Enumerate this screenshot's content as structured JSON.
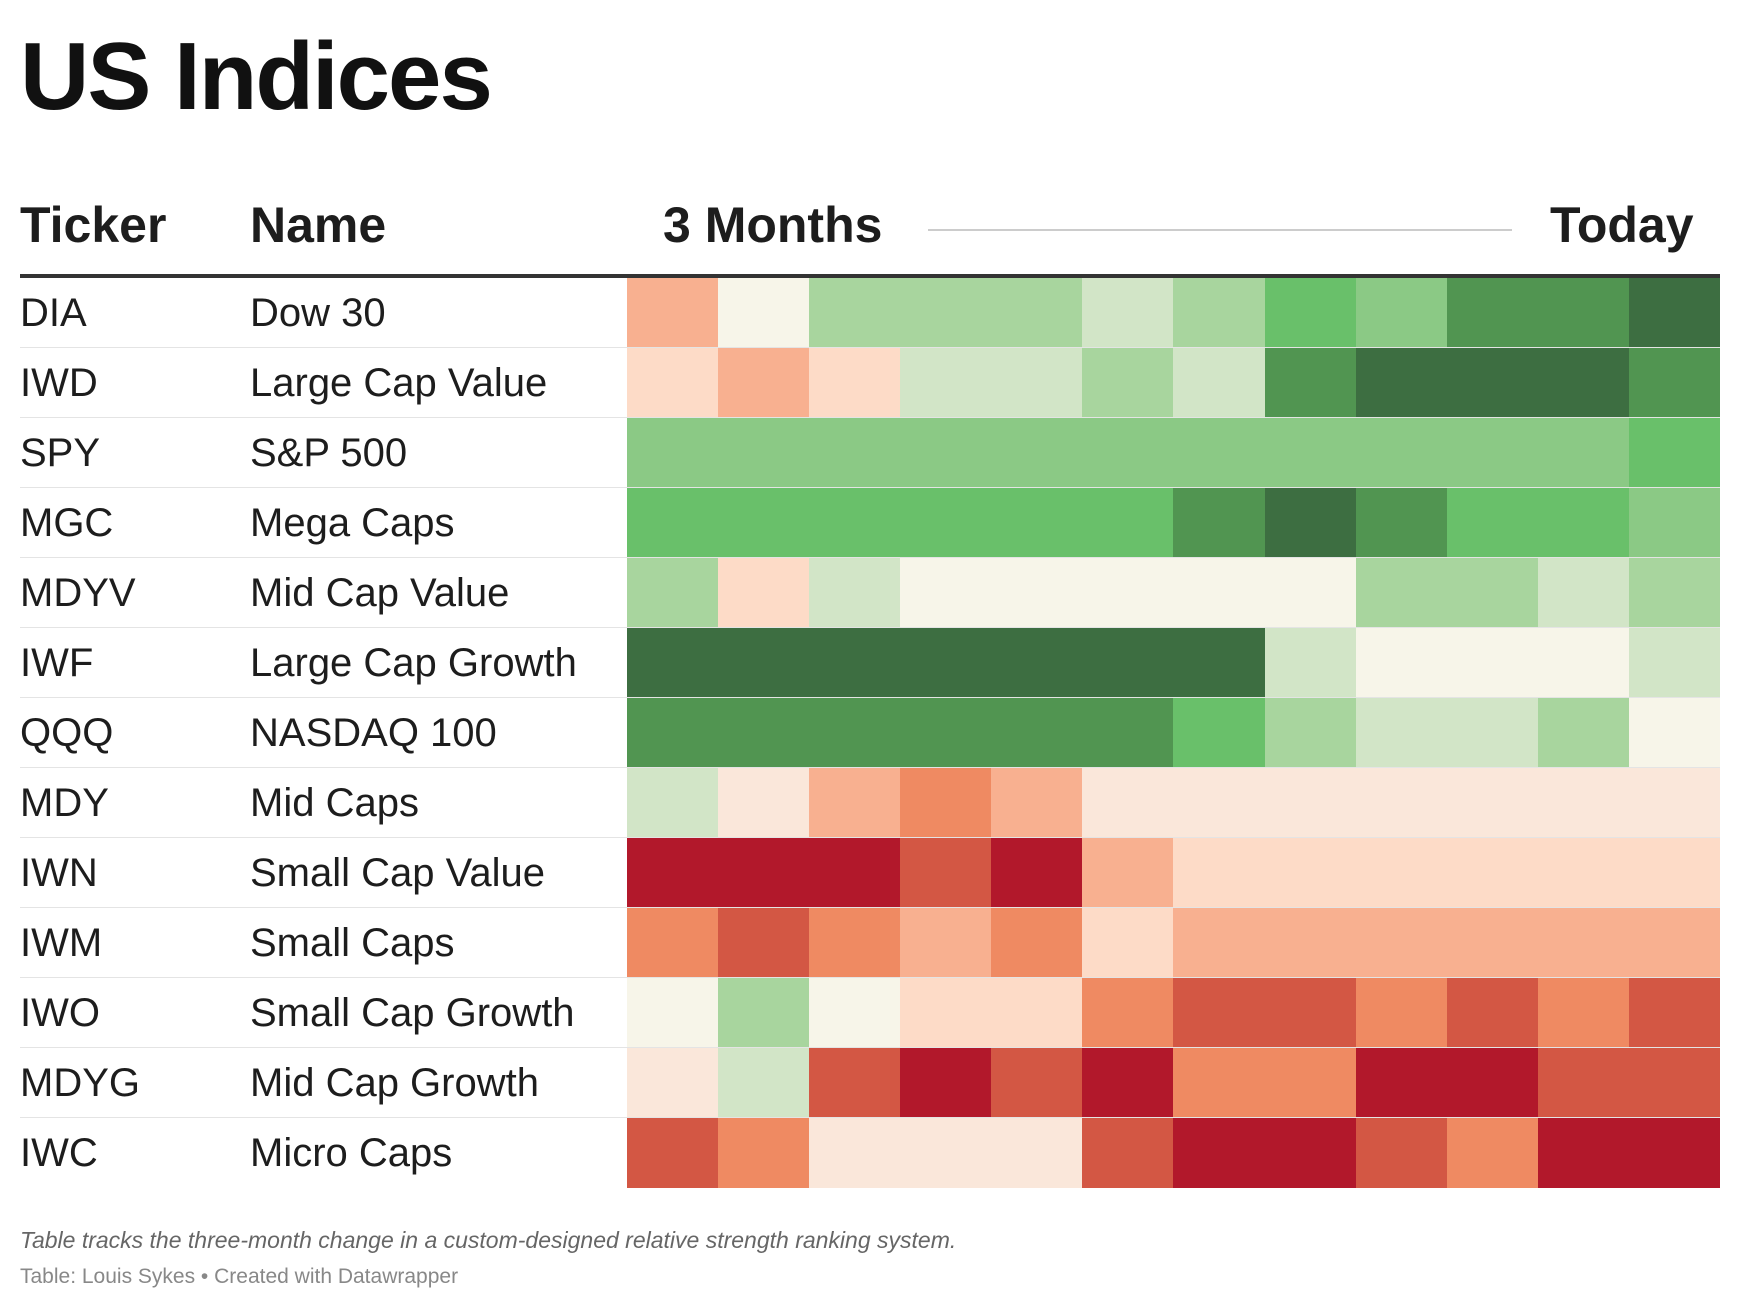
{
  "title": "US Indices",
  "headers": {
    "ticker": "Ticker",
    "name": "Name",
    "start": "3 Months",
    "end": "Today"
  },
  "notes": "Table tracks the three-month change in a custom-designed relative strength ranking system.",
  "source": "Table: Louis Sykes • Created with Datawrapper",
  "colors": {
    "g1": "#f7f5e9",
    "g2": "#d2e5c7",
    "g3": "#a8d59e",
    "g4": "#8bc985",
    "g5": "#69c06a",
    "g6": "#519551",
    "g7": "#3d6e41",
    "r1": "#fae7da",
    "r2": "#fddbc7",
    "r3": "#f8b090",
    "r4": "#ef8a62",
    "r5": "#d35744",
    "r6": "#b2182b"
  },
  "chart_data": {
    "type": "heatmap",
    "columns": [
      "3 Months",
      "",
      "",
      "",
      "",
      "",
      "",
      "",
      "",
      "",
      "",
      "Today"
    ],
    "rows": [
      {
        "ticker": "DIA",
        "name": "Dow 30",
        "cells": [
          "r3",
          "g1",
          "g3",
          "g3",
          "g3",
          "g2",
          "g3",
          "g5",
          "g4",
          "g6",
          "g6",
          "g7"
        ]
      },
      {
        "ticker": "IWD",
        "name": "Large Cap Value",
        "cells": [
          "r2",
          "r3",
          "r2",
          "g2",
          "g2",
          "g3",
          "g2",
          "g6",
          "g7",
          "g7",
          "g7",
          "g6"
        ]
      },
      {
        "ticker": "SPY",
        "name": "S&P 500",
        "cells": [
          "g4",
          "g4",
          "g4",
          "g4",
          "g4",
          "g4",
          "g4",
          "g4",
          "g4",
          "g4",
          "g4",
          "g5"
        ]
      },
      {
        "ticker": "MGC",
        "name": "Mega Caps",
        "cells": [
          "g5",
          "g5",
          "g5",
          "g5",
          "g5",
          "g5",
          "g6",
          "g7",
          "g6",
          "g5",
          "g5",
          "g4"
        ]
      },
      {
        "ticker": "MDYV",
        "name": "Mid Cap Value",
        "cells": [
          "g3",
          "r2",
          "g2",
          "g1",
          "g1",
          "g1",
          "g1",
          "g1",
          "g3",
          "g3",
          "g2",
          "g3"
        ]
      },
      {
        "ticker": "IWF",
        "name": "Large Cap Growth",
        "cells": [
          "g7",
          "g7",
          "g7",
          "g7",
          "g7",
          "g7",
          "g7",
          "g2",
          "g1",
          "g1",
          "g1",
          "g2"
        ]
      },
      {
        "ticker": "QQQ",
        "name": "NASDAQ 100",
        "cells": [
          "g6",
          "g6",
          "g6",
          "g6",
          "g6",
          "g6",
          "g5",
          "g3",
          "g2",
          "g2",
          "g3",
          "g1"
        ]
      },
      {
        "ticker": "MDY",
        "name": "Mid Caps",
        "cells": [
          "g2",
          "r1",
          "r3",
          "r4",
          "r3",
          "r1",
          "r1",
          "r1",
          "r1",
          "r1",
          "r1",
          "r1"
        ]
      },
      {
        "ticker": "IWN",
        "name": "Small Cap Value",
        "cells": [
          "r6",
          "r6",
          "r6",
          "r5",
          "r6",
          "r3",
          "r2",
          "r2",
          "r2",
          "r2",
          "r2",
          "r2"
        ]
      },
      {
        "ticker": "IWM",
        "name": "Small Caps",
        "cells": [
          "r4",
          "r5",
          "r4",
          "r3",
          "r4",
          "r2",
          "r3",
          "r3",
          "r3",
          "r3",
          "r3",
          "r3"
        ]
      },
      {
        "ticker": "IWO",
        "name": "Small Cap Growth",
        "cells": [
          "g1",
          "g3",
          "g1",
          "r2",
          "r2",
          "r4",
          "r5",
          "r5",
          "r4",
          "r5",
          "r4",
          "r5"
        ]
      },
      {
        "ticker": "MDYG",
        "name": "Mid Cap Growth",
        "cells": [
          "r1",
          "g2",
          "r5",
          "r6",
          "r5",
          "r6",
          "r4",
          "r4",
          "r6",
          "r6",
          "r5",
          "r5"
        ]
      },
      {
        "ticker": "IWC",
        "name": "Micro Caps",
        "cells": [
          "r5",
          "r4",
          "r1",
          "r1",
          "r1",
          "r5",
          "r6",
          "r6",
          "r5",
          "r4",
          "r6",
          "r6"
        ]
      }
    ]
  }
}
